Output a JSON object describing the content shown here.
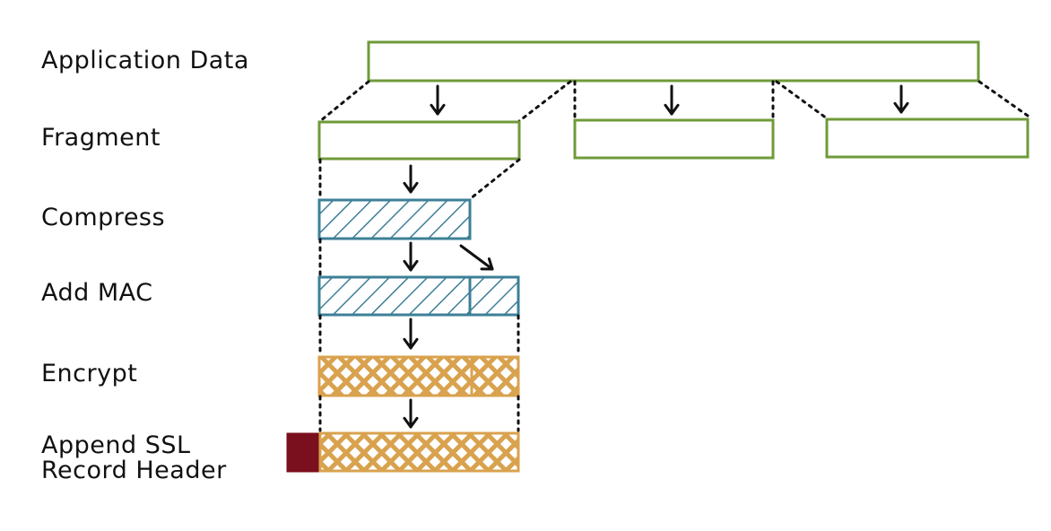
{
  "steps": [
    {
      "id": "application-data",
      "label": "Application Data"
    },
    {
      "id": "fragment",
      "label": "Fragment"
    },
    {
      "id": "compress",
      "label": "Compress"
    },
    {
      "id": "add-mac",
      "label": "Add MAC"
    },
    {
      "id": "encrypt",
      "label": "Encrypt"
    },
    {
      "id": "append-header",
      "label_line1": "Append SSL",
      "label_line2": "Record Header"
    }
  ],
  "colors": {
    "data_outline": "#6f9a3a",
    "compressed": "#3d7f97",
    "encrypted": "#d9a24e",
    "header": "#7a0f1e",
    "connector": "#111111"
  },
  "fragment_count": 3
}
